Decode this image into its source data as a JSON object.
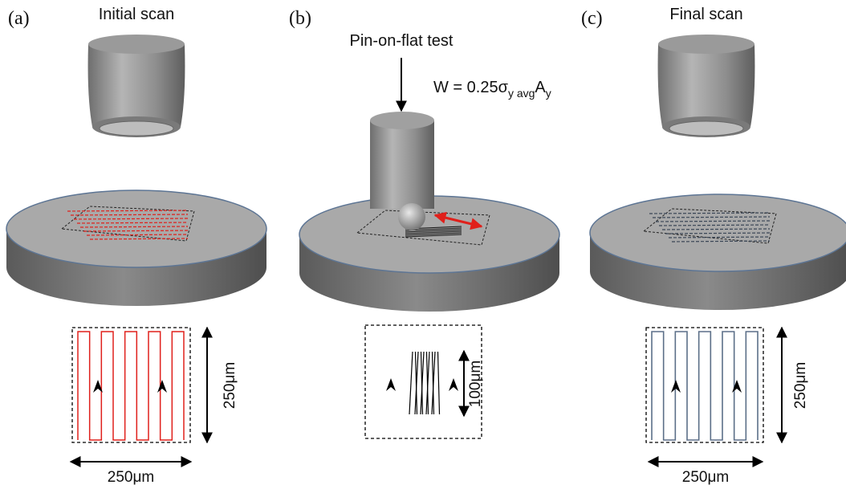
{
  "panels": [
    {
      "letter": "(a)",
      "title": "Initial scan",
      "height_label": "250μm",
      "width_label": "250μm"
    },
    {
      "letter": "(b)",
      "title": "Pin-on-flat test",
      "formula": {
        "parts": [
          "W = 0.25σ",
          "y avg",
          "A",
          "y"
        ]
      },
      "height_label": "100μm"
    },
    {
      "letter": "(c)",
      "title": "Final scan",
      "height_label": "250μm",
      "width_label": "250μm"
    }
  ]
}
